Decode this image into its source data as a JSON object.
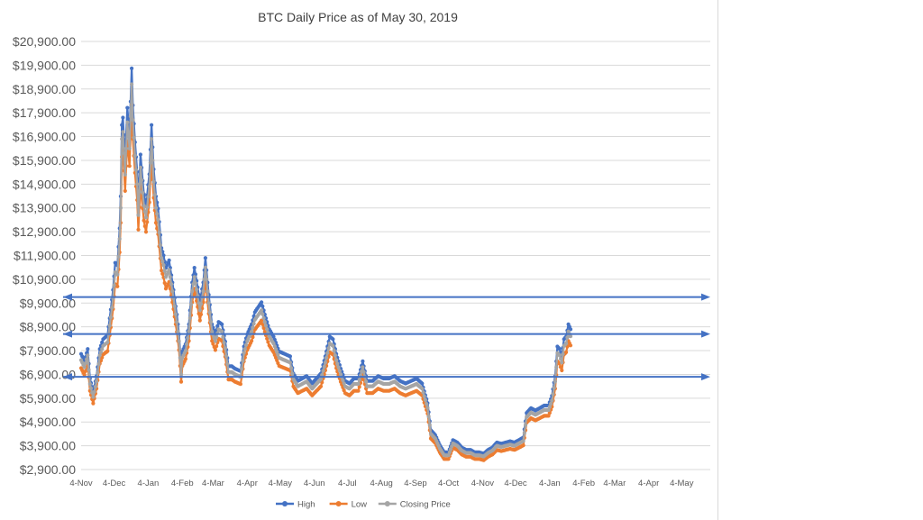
{
  "chart_data": {
    "type": "line",
    "title": "BTC Daily Price as of May 30, 2019",
    "xlabel": "",
    "ylabel": "",
    "ylim": [
      2900,
      20900
    ],
    "yticks": [
      2900,
      3900,
      4900,
      5900,
      6900,
      7900,
      8900,
      9900,
      10900,
      11900,
      12900,
      13900,
      14900,
      15900,
      16900,
      17900,
      18900,
      19900,
      20900
    ],
    "ytick_labels": [
      "$2,900.00",
      "$3,900.00",
      "$4,900.00",
      "$5,900.00",
      "$6,900.00",
      "$7,900.00",
      "$8,900.00",
      "$9,900.00",
      "$10,900.00",
      "$11,900.00",
      "$12,900.00",
      "$13,900.00",
      "$14,900.00",
      "$15,900.00",
      "$16,900.00",
      "$17,900.00",
      "$18,900.00",
      "$19,900.00",
      "$20,900.00"
    ],
    "x_tick_labels": [
      "4-Nov",
      "4-Dec",
      "4-Jan",
      "4-Feb",
      "4-Mar",
      "4-Apr",
      "4-May",
      "4-Jun",
      "4-Jul",
      "4-Aug",
      "4-Sep",
      "4-Oct",
      "4-Nov",
      "4-Dec",
      "4-Jan",
      "4-Feb",
      "4-Mar",
      "4-Apr",
      "4-May"
    ],
    "x_tick_days": [
      0,
      30,
      61,
      92,
      120,
      151,
      181,
      212,
      242,
      273,
      304,
      334,
      365,
      395,
      426,
      457,
      485,
      516,
      546
    ],
    "x_range_days": [
      0,
      572
    ],
    "grid": "horizontal",
    "legend": "bottom",
    "colors": {
      "High": "#4472c4",
      "Low": "#ed7d31",
      "Closing Price": "#a5a5a5",
      "arrows": "#4472c4",
      "gridline": "#d9d9d9"
    },
    "arrow_levels": [
      10150,
      8600,
      6800
    ],
    "anchors": [
      {
        "day": 0,
        "close": 7500
      },
      {
        "day": 3,
        "close": 7200
      },
      {
        "day": 6,
        "close": 7700
      },
      {
        "day": 8,
        "close": 6500
      },
      {
        "day": 11,
        "close": 5950
      },
      {
        "day": 14,
        "close": 6600
      },
      {
        "day": 17,
        "close": 7700
      },
      {
        "day": 20,
        "close": 8100
      },
      {
        "day": 24,
        "close": 8250
      },
      {
        "day": 27,
        "close": 9300
      },
      {
        "day": 29,
        "close": 10100
      },
      {
        "day": 31,
        "close": 11200
      },
      {
        "day": 33,
        "close": 11100
      },
      {
        "day": 35,
        "close": 12600
      },
      {
        "day": 36,
        "close": 13900
      },
      {
        "day": 37,
        "close": 16800
      },
      {
        "day": 38,
        "close": 17100
      },
      {
        "day": 40,
        "close": 15300
      },
      {
        "day": 42,
        "close": 17500
      },
      {
        "day": 44,
        "close": 16400
      },
      {
        "day": 46,
        "close": 19100
      },
      {
        "day": 47,
        "close": 17600
      },
      {
        "day": 49,
        "close": 16100
      },
      {
        "day": 51,
        "close": 14900
      },
      {
        "day": 52,
        "close": 13600
      },
      {
        "day": 54,
        "close": 15600
      },
      {
        "day": 57,
        "close": 14000
      },
      {
        "day": 59,
        "close": 13500
      },
      {
        "day": 62,
        "close": 14800
      },
      {
        "day": 64,
        "close": 16800
      },
      {
        "day": 66,
        "close": 15000
      },
      {
        "day": 68,
        "close": 13900
      },
      {
        "day": 70,
        "close": 13400
      },
      {
        "day": 73,
        "close": 11800
      },
      {
        "day": 75,
        "close": 11500
      },
      {
        "day": 77,
        "close": 11000
      },
      {
        "day": 80,
        "close": 11300
      },
      {
        "day": 84,
        "close": 10100
      },
      {
        "day": 87,
        "close": 9100
      },
      {
        "day": 89,
        "close": 8300
      },
      {
        "day": 91,
        "close": 6900
      },
      {
        "day": 92,
        "close": 7600
      },
      {
        "day": 95,
        "close": 7900
      },
      {
        "day": 98,
        "close": 8700
      },
      {
        "day": 101,
        "close": 10400
      },
      {
        "day": 103,
        "close": 11000
      },
      {
        "day": 106,
        "close": 10200
      },
      {
        "day": 108,
        "close": 9600
      },
      {
        "day": 111,
        "close": 10400
      },
      {
        "day": 113,
        "close": 11400
      },
      {
        "day": 116,
        "close": 9900
      },
      {
        "day": 119,
        "close": 8700
      },
      {
        "day": 122,
        "close": 8300
      },
      {
        "day": 125,
        "close": 8800
      },
      {
        "day": 128,
        "close": 8700
      },
      {
        "day": 131,
        "close": 8000
      },
      {
        "day": 134,
        "close": 7000
      },
      {
        "day": 137,
        "close": 7000
      },
      {
        "day": 140,
        "close": 6900
      },
      {
        "day": 145,
        "close": 6800
      },
      {
        "day": 148,
        "close": 7800
      },
      {
        "day": 151,
        "close": 8300
      },
      {
        "day": 155,
        "close": 8700
      },
      {
        "day": 158,
        "close": 9200
      },
      {
        "day": 161,
        "close": 9400
      },
      {
        "day": 164,
        "close": 9600
      },
      {
        "day": 167,
        "close": 9100
      },
      {
        "day": 171,
        "close": 8500
      },
      {
        "day": 175,
        "close": 8200
      },
      {
        "day": 180,
        "close": 7600
      },
      {
        "day": 185,
        "close": 7500
      },
      {
        "day": 190,
        "close": 7400
      },
      {
        "day": 193,
        "close": 6700
      },
      {
        "day": 197,
        "close": 6400
      },
      {
        "day": 201,
        "close": 6500
      },
      {
        "day": 205,
        "close": 6600
      },
      {
        "day": 210,
        "close": 6300
      },
      {
        "day": 214,
        "close": 6500
      },
      {
        "day": 218,
        "close": 6700
      },
      {
        "day": 222,
        "close": 7400
      },
      {
        "day": 226,
        "close": 8200
      },
      {
        "day": 229,
        "close": 8100
      },
      {
        "day": 232,
        "close": 7500
      },
      {
        "day": 236,
        "close": 6900
      },
      {
        "day": 240,
        "close": 6400
      },
      {
        "day": 244,
        "close": 6300
      },
      {
        "day": 248,
        "close": 6500
      },
      {
        "day": 252,
        "close": 6500
      },
      {
        "day": 256,
        "close": 7200
      },
      {
        "day": 260,
        "close": 6400
      },
      {
        "day": 265,
        "close": 6400
      },
      {
        "day": 270,
        "close": 6600
      },
      {
        "day": 275,
        "close": 6500
      },
      {
        "day": 280,
        "close": 6500
      },
      {
        "day": 285,
        "close": 6600
      },
      {
        "day": 290,
        "close": 6400
      },
      {
        "day": 295,
        "close": 6300
      },
      {
        "day": 300,
        "close": 6400
      },
      {
        "day": 305,
        "close": 6500
      },
      {
        "day": 310,
        "close": 6300
      },
      {
        "day": 315,
        "close": 5500
      },
      {
        "day": 318,
        "close": 4400
      },
      {
        "day": 322,
        "close": 4200
      },
      {
        "day": 326,
        "close": 3800
      },
      {
        "day": 330,
        "close": 3500
      },
      {
        "day": 334,
        "close": 3500
      },
      {
        "day": 338,
        "close": 4000
      },
      {
        "day": 342,
        "close": 3900
      },
      {
        "day": 346,
        "close": 3700
      },
      {
        "day": 350,
        "close": 3600
      },
      {
        "day": 354,
        "close": 3600
      },
      {
        "day": 358,
        "close": 3500
      },
      {
        "day": 362,
        "close": 3500
      },
      {
        "day": 366,
        "close": 3450
      },
      {
        "day": 370,
        "close": 3600
      },
      {
        "day": 374,
        "close": 3700
      },
      {
        "day": 378,
        "close": 3900
      },
      {
        "day": 382,
        "close": 3850
      },
      {
        "day": 386,
        "close": 3900
      },
      {
        "day": 390,
        "close": 3950
      },
      {
        "day": 394,
        "close": 3900
      },
      {
        "day": 398,
        "close": 4000
      },
      {
        "day": 402,
        "close": 4100
      },
      {
        "day": 405,
        "close": 5100
      },
      {
        "day": 409,
        "close": 5300
      },
      {
        "day": 413,
        "close": 5200
      },
      {
        "day": 417,
        "close": 5300
      },
      {
        "day": 421,
        "close": 5400
      },
      {
        "day": 425,
        "close": 5400
      },
      {
        "day": 428,
        "close": 5800
      },
      {
        "day": 431,
        "close": 6600
      },
      {
        "day": 433,
        "close": 7800
      },
      {
        "day": 435,
        "close": 7700
      },
      {
        "day": 437,
        "close": 7400
      },
      {
        "day": 439,
        "close": 8100
      },
      {
        "day": 441,
        "close": 8200
      },
      {
        "day": 443,
        "close": 8700
      },
      {
        "day": 445,
        "close": 8500
      }
    ]
  },
  "legend_items": [
    {
      "name": "High"
    },
    {
      "name": "Low"
    },
    {
      "name": "Closing Price"
    }
  ]
}
